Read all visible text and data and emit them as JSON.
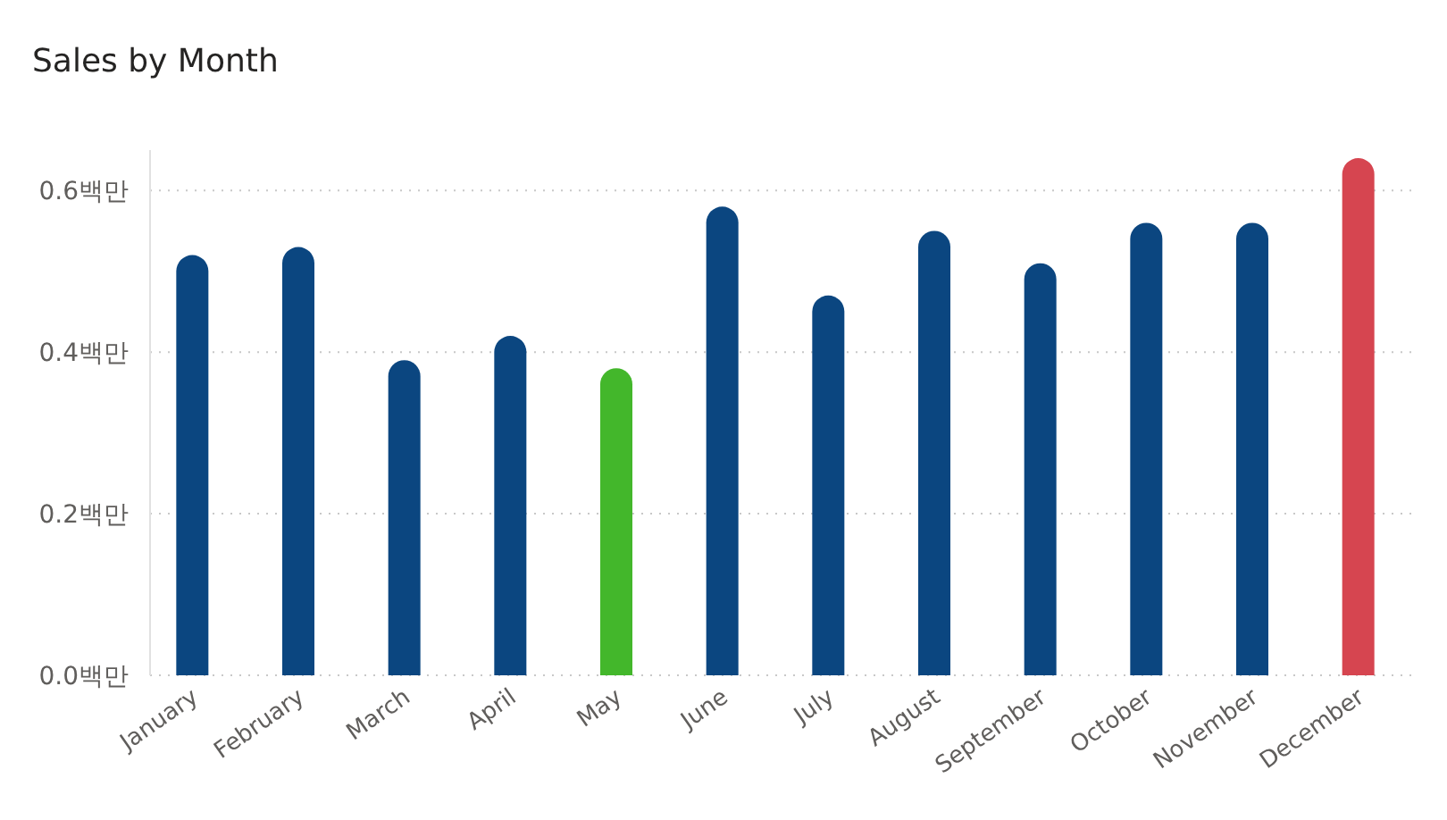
{
  "chart_data": {
    "type": "bar",
    "title": "Sales by Month",
    "categories": [
      "January",
      "February",
      "March",
      "April",
      "May",
      "June",
      "July",
      "August",
      "September",
      "October",
      "November",
      "December"
    ],
    "values": [
      0.52,
      0.53,
      0.39,
      0.42,
      0.38,
      0.58,
      0.47,
      0.55,
      0.51,
      0.56,
      0.56,
      0.64
    ],
    "colors": [
      "#0b4680",
      "#0b4680",
      "#0b4680",
      "#0b4680",
      "#43b72b",
      "#0b4680",
      "#0b4680",
      "#0b4680",
      "#0b4680",
      "#0b4680",
      "#0b4680",
      "#d64550"
    ],
    "ylim": [
      0,
      0.65
    ],
    "yticks": [
      {
        "value": 0,
        "label": "0.0백만"
      },
      {
        "value": 0.2,
        "label": "0.2백만"
      },
      {
        "value": 0.4,
        "label": "0.4백만"
      },
      {
        "value": 0.6,
        "label": "0.6백만"
      }
    ],
    "grid": "y"
  }
}
